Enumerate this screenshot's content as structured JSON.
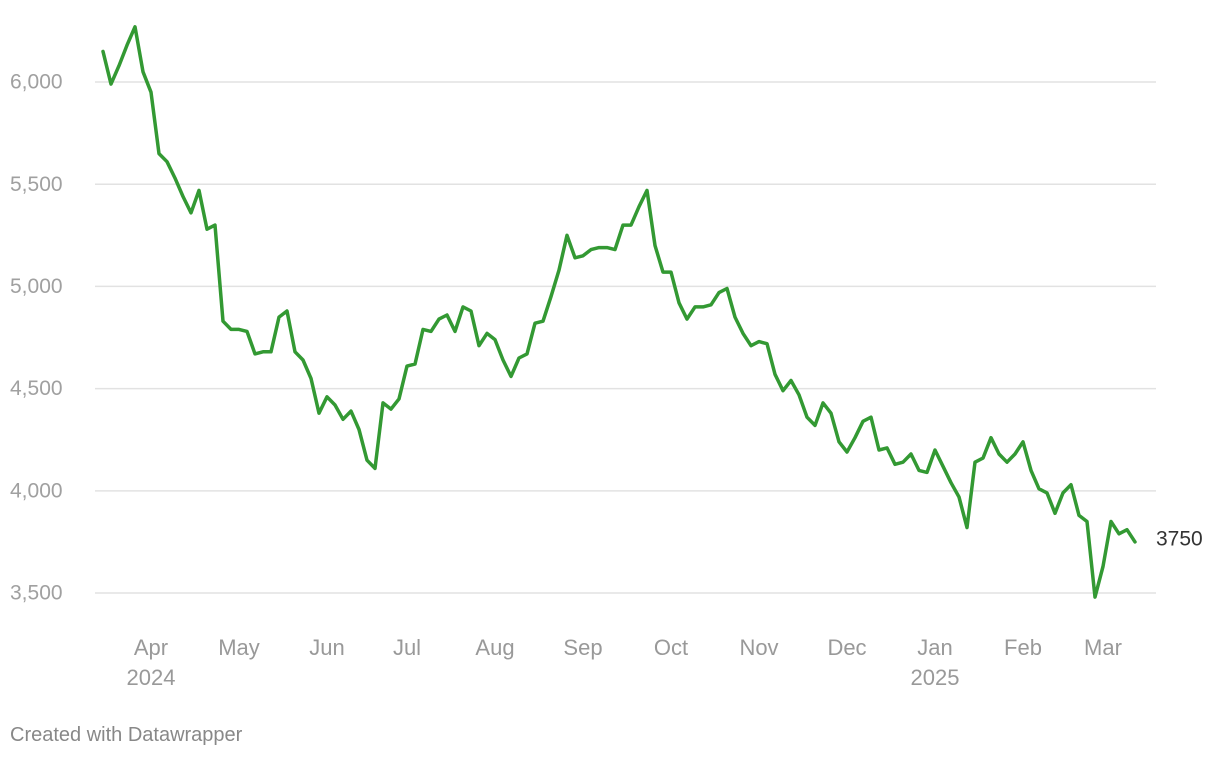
{
  "chart_data": {
    "type": "line",
    "categories": [
      null,
      null,
      null,
      null,
      null,
      null,
      "Apr 2024",
      null,
      null,
      null,
      null,
      null,
      null,
      null,
      null,
      null,
      null,
      "May",
      null,
      null,
      null,
      null,
      null,
      null,
      null,
      null,
      null,
      null,
      "Jun",
      null,
      null,
      null,
      null,
      null,
      null,
      null,
      null,
      null,
      "Jul",
      null,
      null,
      null,
      null,
      null,
      null,
      null,
      null,
      null,
      null,
      "Aug",
      null,
      null,
      null,
      null,
      null,
      null,
      null,
      null,
      null,
      null,
      "Sep",
      null,
      null,
      null,
      null,
      null,
      null,
      null,
      null,
      null,
      null,
      "Oct",
      null,
      null,
      null,
      null,
      null,
      null,
      null,
      null,
      null,
      null,
      "Nov",
      null,
      null,
      null,
      null,
      null,
      null,
      null,
      null,
      null,
      null,
      "Dec",
      null,
      null,
      null,
      null,
      null,
      null,
      null,
      null,
      null,
      null,
      "Jan 2025",
      null,
      null,
      null,
      null,
      null,
      null,
      null,
      null,
      null,
      null,
      "Feb",
      null,
      null,
      null,
      null,
      null,
      null,
      null,
      null,
      null,
      "Mar",
      null,
      null,
      null,
      null
    ],
    "values": [
      6150,
      5990,
      6080,
      6180,
      6270,
      6050,
      5950,
      5650,
      5610,
      5530,
      5440,
      5360,
      5470,
      5280,
      5300,
      4830,
      4790,
      4790,
      4780,
      4670,
      4680,
      4680,
      4850,
      4880,
      4680,
      4640,
      4550,
      4380,
      4460,
      4420,
      4350,
      4390,
      4300,
      4150,
      4110,
      4430,
      4400,
      4450,
      4610,
      4620,
      4790,
      4780,
      4840,
      4860,
      4780,
      4900,
      4880,
      4710,
      4770,
      4740,
      4640,
      4560,
      4650,
      4670,
      4820,
      4830,
      4950,
      5080,
      5250,
      5140,
      5150,
      5180,
      5190,
      5190,
      5180,
      5300,
      5300,
      5390,
      5470,
      5200,
      5070,
      5070,
      4920,
      4840,
      4900,
      4900,
      4910,
      4970,
      4990,
      4850,
      4770,
      4710,
      4730,
      4720,
      4570,
      4490,
      4540,
      4470,
      4360,
      4320,
      4430,
      4380,
      4240,
      4190,
      4260,
      4340,
      4360,
      4200,
      4210,
      4130,
      4140,
      4180,
      4100,
      4090,
      4200,
      4120,
      4040,
      3970,
      3820,
      4140,
      4160,
      4260,
      4180,
      4140,
      4180,
      4240,
      4100,
      4010,
      3990,
      3890,
      3990,
      4030,
      3880,
      3850,
      3480,
      3630,
      3850,
      3790,
      3810,
      3750
    ],
    "color": "#339933",
    "ylim": [
      3350,
      6300
    ],
    "yticks": [
      {
        "value": 3500,
        "label": "3,500"
      },
      {
        "value": 4000,
        "label": "4,000"
      },
      {
        "value": 4500,
        "label": "4,500"
      },
      {
        "value": 5000,
        "label": "5,000"
      },
      {
        "value": 5500,
        "label": "5,500"
      },
      {
        "value": 6000,
        "label": "6,000"
      }
    ],
    "grid": true,
    "credit": "Created with Datawrapper"
  }
}
